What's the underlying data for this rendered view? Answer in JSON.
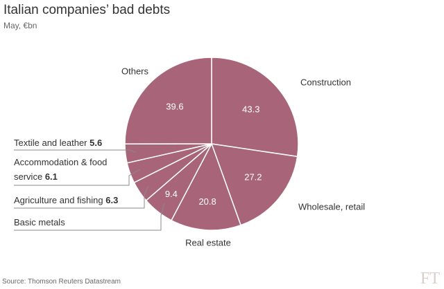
{
  "chart_data": {
    "type": "pie",
    "title": "Italian companies’ bad debts",
    "subtitle": "May, €bn",
    "categories": [
      "Construction",
      "Wholesale, retail",
      "Real estate",
      "Basic metals",
      "Agriculture and fishing",
      "Accommodation & food service",
      "Textile and leather",
      "Others"
    ],
    "values": [
      43.3,
      27.2,
      20.8,
      9.4,
      6.3,
      6.1,
      5.6,
      39.6
    ],
    "color": "#a8657a",
    "source": "Source: Thomson Reuters Datastream",
    "logo": "FT"
  }
}
